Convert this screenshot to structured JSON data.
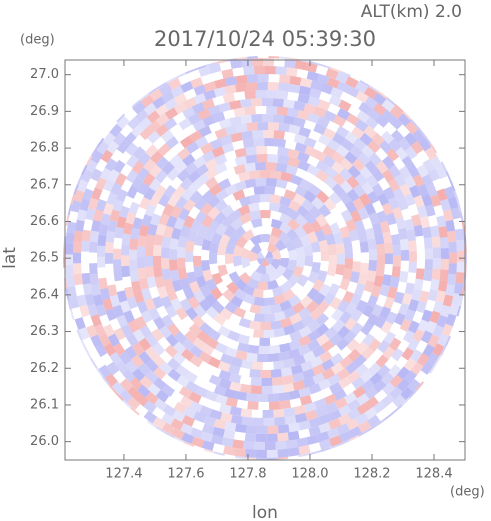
{
  "chart_data": {
    "type": "radar-image",
    "title": "2017/10/24 05:39:30",
    "annotation": "ALT(km) 2.0",
    "y_unit": "(deg)",
    "x_unit": "(deg)",
    "xlabel": "lon",
    "ylabel": "lat",
    "xlim": [
      127.21,
      128.5
    ],
    "ylim": [
      25.95,
      27.04
    ],
    "xticks": [
      127.4,
      127.6,
      127.8,
      {
        "value": 128.0,
        "label": "128.0"
      },
      128.2,
      128.4
    ],
    "yticks": [
      {
        "value": 26.0,
        "label": "26.0"
      },
      26.1,
      26.2,
      26.3,
      26.4,
      26.5,
      26.6,
      26.7,
      26.8,
      26.9,
      {
        "value": 27.0,
        "label": "27.0"
      }
    ]
  }
}
